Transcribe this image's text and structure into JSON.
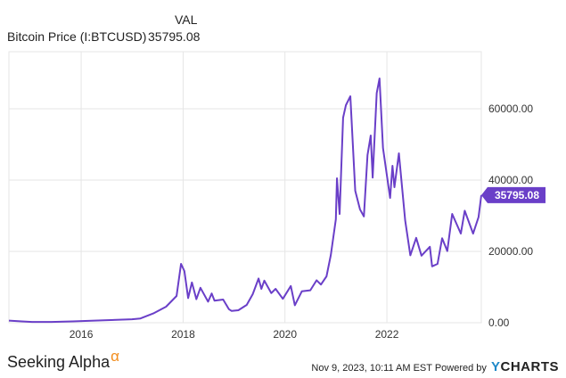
{
  "legend": {
    "header": "VAL",
    "series_label": "Bitcoin Price (I:BTCUSD)",
    "series_value": "35795.08"
  },
  "footer": {
    "left_brand": "Seeking Alpha",
    "left_brand_symbol": "α",
    "right_text": "Nov 9, 2023, 10:11 AM EST Powered by",
    "right_brand_y": "Y",
    "right_brand_rest": "CHARTS"
  },
  "colors": {
    "series": "#6a3fc8",
    "grid": "#e6e6e6",
    "axis_text": "#333333"
  },
  "chart_data": {
    "type": "line",
    "x_type": "date",
    "x_ticks": [
      "2016",
      "2018",
      "2020",
      "2022"
    ],
    "y_ticks": [
      0,
      20000,
      40000,
      60000
    ],
    "y_tick_labels": [
      "0.00",
      "20000.00",
      "40000.00",
      "60000.00"
    ],
    "ylim": [
      0,
      76000
    ],
    "xlim": [
      "2014-08-01",
      "2023-11-09"
    ],
    "grid": true,
    "last_value_label": "35795.08",
    "series": [
      {
        "name": "Bitcoin Price (I:BTCUSD)",
        "points": [
          [
            "2014-08-01",
            580
          ],
          [
            "2014-11-01",
            380
          ],
          [
            "2015-01-15",
            210
          ],
          [
            "2015-06-01",
            230
          ],
          [
            "2015-11-01",
            360
          ],
          [
            "2016-06-15",
            700
          ],
          [
            "2016-12-31",
            960
          ],
          [
            "2017-03-01",
            1200
          ],
          [
            "2017-06-01",
            2600
          ],
          [
            "2017-09-01",
            4500
          ],
          [
            "2017-11-15",
            7500
          ],
          [
            "2017-12-17",
            16500
          ],
          [
            "2018-01-10",
            14500
          ],
          [
            "2018-02-06",
            6900
          ],
          [
            "2018-03-05",
            11300
          ],
          [
            "2018-04-06",
            6600
          ],
          [
            "2018-05-05",
            9800
          ],
          [
            "2018-06-29",
            5900
          ],
          [
            "2018-07-25",
            8200
          ],
          [
            "2018-08-14",
            6200
          ],
          [
            "2018-10-15",
            6500
          ],
          [
            "2018-11-25",
            3800
          ],
          [
            "2018-12-15",
            3300
          ],
          [
            "2019-02-01",
            3500
          ],
          [
            "2019-04-02",
            5000
          ],
          [
            "2019-05-15",
            8000
          ],
          [
            "2019-06-26",
            12400
          ],
          [
            "2019-07-16",
            9500
          ],
          [
            "2019-08-06",
            11800
          ],
          [
            "2019-09-25",
            8300
          ],
          [
            "2019-10-26",
            9500
          ],
          [
            "2019-12-17",
            6700
          ],
          [
            "2020-02-12",
            10300
          ],
          [
            "2020-03-12",
            4900
          ],
          [
            "2020-05-01",
            8800
          ],
          [
            "2020-07-01",
            9100
          ],
          [
            "2020-08-15",
            11900
          ],
          [
            "2020-09-15",
            10700
          ],
          [
            "2020-10-25",
            13000
          ],
          [
            "2020-11-25",
            19000
          ],
          [
            "2020-12-31",
            29000
          ],
          [
            "2021-01-08",
            40500
          ],
          [
            "2021-01-27",
            30500
          ],
          [
            "2021-02-21",
            57500
          ],
          [
            "2021-03-13",
            61000
          ],
          [
            "2021-04-14",
            63500
          ],
          [
            "2021-05-19",
            37000
          ],
          [
            "2021-06-22",
            31800
          ],
          [
            "2021-07-20",
            29800
          ],
          [
            "2021-08-15",
            47000
          ],
          [
            "2021-09-07",
            52500
          ],
          [
            "2021-09-21",
            40700
          ],
          [
            "2021-10-20",
            64400
          ],
          [
            "2021-11-09",
            68500
          ],
          [
            "2021-12-04",
            49000
          ],
          [
            "2022-01-24",
            35000
          ],
          [
            "2022-02-10",
            44000
          ],
          [
            "2022-02-24",
            38000
          ],
          [
            "2022-03-28",
            47500
          ],
          [
            "2022-05-12",
            28700
          ],
          [
            "2022-06-18",
            18900
          ],
          [
            "2022-07-30",
            23800
          ],
          [
            "2022-09-06",
            18800
          ],
          [
            "2022-11-05",
            21300
          ],
          [
            "2022-11-21",
            15800
          ],
          [
            "2022-12-30",
            16500
          ],
          [
            "2023-02-01",
            23700
          ],
          [
            "2023-03-10",
            20100
          ],
          [
            "2023-04-14",
            30500
          ],
          [
            "2023-06-15",
            25000
          ],
          [
            "2023-07-13",
            31400
          ],
          [
            "2023-09-11",
            25000
          ],
          [
            "2023-10-20",
            29600
          ],
          [
            "2023-11-09",
            35795.08
          ]
        ]
      }
    ]
  }
}
